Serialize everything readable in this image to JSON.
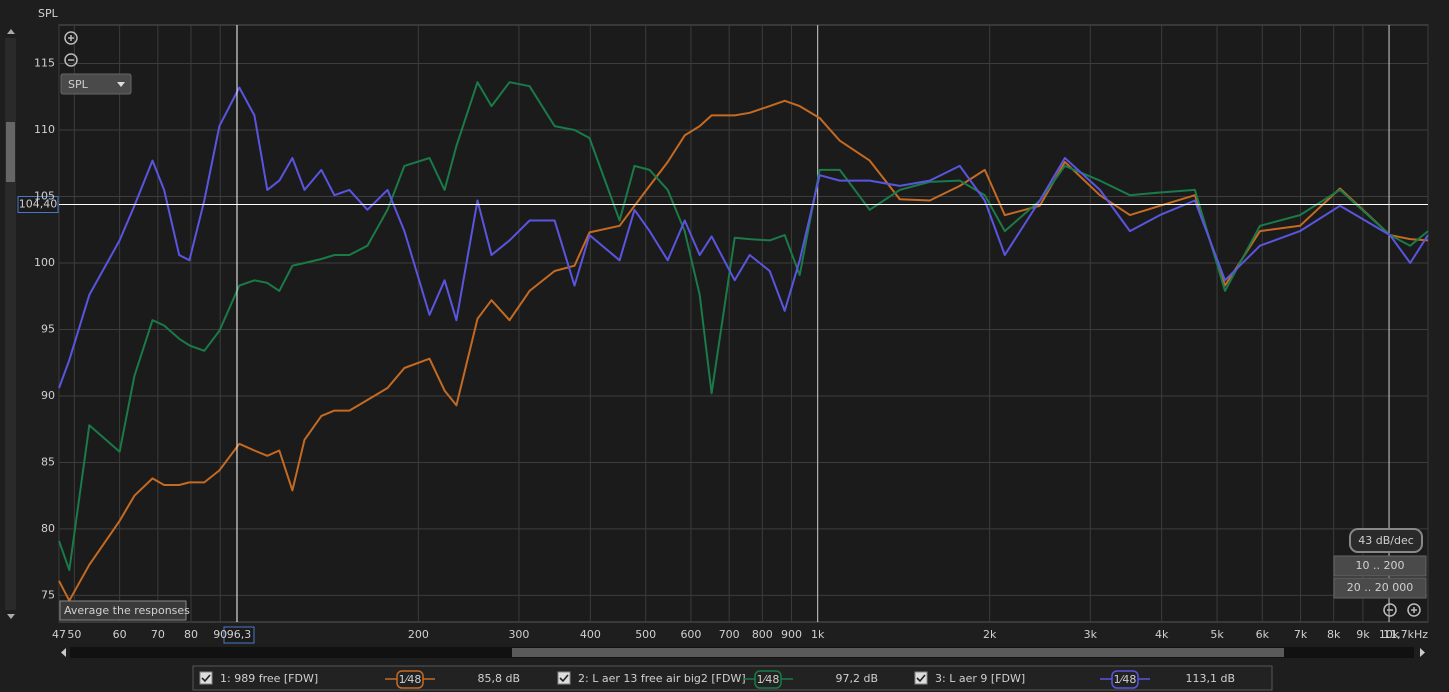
{
  "chart_data": {
    "type": "line",
    "y_axis_title": "SPL",
    "x": [
      47,
      49,
      53.1,
      60,
      63.7,
      68.5,
      71.8,
      76.3,
      79.5,
      84.4,
      89.7,
      97.2,
      103.3,
      108.8,
      114.2,
      120.4,
      126.4,
      135.3,
      142.6,
      151.5,
      162.9,
      176.6,
      189.1,
      209.2,
      222.3,
      233.2,
      253.8,
      268.6,
      288.8,
      313.1,
      346.3,
      375.3,
      398.7,
      450,
      478,
      508,
      546.3,
      585,
      621.5,
      652,
      715.8,
      760.3,
      824,
      875.6,
      930,
      1008,
      1093,
      1233,
      1392,
      1571,
      1773,
      1961,
      2126,
      2448,
      2708,
      3118,
      3519,
      3971,
      4573,
      5163,
      5944,
      6986,
      8207,
      10040,
      10890,
      11700
    ],
    "series": [
      {
        "name": "1: 989 free [FDW]",
        "color": "#c46a22",
        "smoothing": "1⁄48",
        "level": "85,8 dB",
        "values": [
          76.1,
          74.6,
          77.3,
          80.6,
          82.5,
          83.8,
          83.3,
          83.3,
          83.5,
          83.5,
          84.4,
          86.4,
          85.9,
          85.5,
          85.9,
          82.9,
          86.7,
          88.5,
          88.9,
          88.9,
          89.7,
          90.6,
          92.1,
          92.8,
          90.4,
          89.3,
          95.8,
          97.2,
          95.7,
          97.9,
          99.4,
          99.8,
          102.3,
          102.8,
          104.3,
          105.8,
          107.6,
          109.6,
          110.3,
          111.1,
          111.1,
          111.3,
          111.8,
          112.2,
          111.8,
          110.9,
          109.2,
          107.7,
          104.8,
          104.7,
          105.8,
          107.0,
          103.6,
          104.3,
          107.6,
          105.1,
          103.6,
          104.3,
          105.1,
          98.3,
          102.4,
          102.8,
          105.6,
          102.1,
          101.8,
          101.7
        ]
      },
      {
        "name": "2: L aer 13 free air big2 [FDW]",
        "color": "#1a7a48",
        "smoothing": "1⁄48",
        "level": "97,2 dB",
        "values": [
          79.1,
          76.9,
          87.8,
          85.8,
          91.5,
          95.7,
          95.3,
          94.3,
          93.8,
          93.4,
          94.9,
          98.3,
          98.7,
          98.5,
          97.9,
          99.8,
          100.0,
          100.3,
          100.6,
          100.6,
          101.3,
          104.0,
          107.3,
          107.9,
          105.5,
          108.8,
          113.6,
          111.8,
          113.6,
          113.3,
          110.3,
          110.0,
          109.4,
          103.2,
          107.3,
          107.0,
          105.5,
          102.4,
          97.6,
          90.2,
          101.9,
          101.8,
          101.7,
          102.1,
          99.1,
          107.0,
          107.0,
          104.0,
          105.5,
          106.1,
          106.2,
          105.1,
          102.4,
          104.7,
          107.3,
          106.2,
          105.1,
          105.3,
          105.5,
          97.9,
          102.8,
          103.6,
          105.5,
          102.1,
          101.3,
          102.4
        ]
      },
      {
        "name": "3: L aer 9 [FDW]",
        "color": "#5a55e0",
        "smoothing": "1⁄48",
        "level": "113,1 dB",
        "values": [
          90.6,
          92.7,
          97.6,
          101.7,
          104.3,
          107.7,
          105.5,
          100.6,
          100.2,
          104.7,
          110.3,
          113.2,
          111.1,
          105.5,
          106.2,
          107.9,
          105.5,
          107.0,
          105.1,
          105.5,
          104.0,
          105.5,
          102.4,
          96.1,
          98.7,
          95.7,
          104.7,
          100.6,
          101.7,
          103.2,
          103.2,
          98.3,
          102.1,
          100.2,
          104.0,
          102.4,
          100.2,
          103.2,
          100.6,
          102.0,
          98.7,
          100.6,
          99.4,
          96.4,
          100.2,
          106.6,
          106.2,
          106.2,
          105.8,
          106.2,
          107.3,
          104.7,
          100.6,
          104.7,
          107.9,
          105.5,
          102.4,
          103.6,
          104.7,
          98.7,
          101.3,
          102.4,
          104.3,
          102.1,
          100.0,
          102.1
        ]
      }
    ],
    "log_x": true,
    "xlim": [
      47,
      11700
    ],
    "ylim": [
      73,
      117.9
    ],
    "xticks": [
      47,
      50,
      60,
      70,
      80,
      90,
      200,
      300,
      400,
      500,
      600,
      700,
      800,
      900,
      {
        "value": 1000,
        "label": "1k"
      },
      {
        "value": 2000,
        "label": "2k"
      },
      {
        "value": 3000,
        "label": "3k"
      },
      {
        "value": 4000,
        "label": "4k"
      },
      {
        "value": 5000,
        "label": "5k"
      },
      {
        "value": 6000,
        "label": "6k"
      },
      {
        "value": 7000,
        "label": "7k"
      },
      {
        "value": 8000,
        "label": "8k"
      },
      {
        "value": 9000,
        "label": "9k"
      },
      {
        "value": 10000,
        "label": "10k"
      },
      {
        "value": 11700,
        "label": "11,7kHz"
      }
    ],
    "yticks": [
      75,
      80,
      85,
      90,
      95,
      100,
      105,
      110,
      115
    ],
    "grid": true,
    "cursor": {
      "x": {
        "value": 96.3,
        "label": "96,3"
      },
      "y": {
        "value": 104.4,
        "label": "104,40"
      }
    }
  },
  "controls": {
    "graph_select": "SPL",
    "slope": "43 dB/dec",
    "range_y": "10 .. 200",
    "range_x": "20 .. 20 000",
    "tooltip": "Average the responses"
  }
}
